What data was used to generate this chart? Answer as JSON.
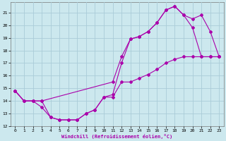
{
  "xlabel": "Windchill (Refroidissement éolien,°C)",
  "bg_color": "#cce8ee",
  "grid_color": "#aaccd8",
  "line_color": "#aa00aa",
  "xlim": [
    -0.5,
    23.5
  ],
  "ylim": [
    12,
    21.8
  ],
  "xticks": [
    0,
    1,
    2,
    3,
    4,
    5,
    6,
    7,
    8,
    9,
    10,
    11,
    12,
    13,
    14,
    15,
    16,
    17,
    18,
    19,
    20,
    21,
    22,
    23
  ],
  "yticks": [
    12,
    13,
    14,
    15,
    16,
    17,
    18,
    19,
    20,
    21
  ],
  "line1_x": [
    0,
    1,
    2,
    3,
    4,
    5,
    6,
    7,
    8,
    9,
    10,
    11,
    12,
    13,
    14,
    15,
    16,
    17,
    18,
    19,
    20,
    21,
    22,
    23
  ],
  "line1_y": [
    14.8,
    14.0,
    14.0,
    13.5,
    12.7,
    12.5,
    12.5,
    12.5,
    13.0,
    13.3,
    14.3,
    14.3,
    15.5,
    15.5,
    15.8,
    16.1,
    16.5,
    17.0,
    17.3,
    17.5,
    17.5,
    17.5,
    17.5,
    17.5
  ],
  "line2_x": [
    0,
    1,
    2,
    3,
    4,
    5,
    6,
    7,
    8,
    9,
    10,
    11,
    12,
    13,
    14,
    15,
    16,
    17,
    18,
    19,
    20,
    21,
    22,
    23
  ],
  "line2_y": [
    14.8,
    14.0,
    14.0,
    14.0,
    12.7,
    12.5,
    12.5,
    12.5,
    13.0,
    13.3,
    14.3,
    14.5,
    17.0,
    18.9,
    19.1,
    19.5,
    20.2,
    21.2,
    21.5,
    20.8,
    19.8,
    17.5,
    17.5,
    17.5
  ],
  "line3_x": [
    0,
    1,
    2,
    3,
    11,
    12,
    13,
    14,
    15,
    16,
    17,
    18,
    19,
    20,
    21,
    22,
    23
  ],
  "line3_y": [
    14.8,
    14.0,
    14.0,
    14.0,
    15.5,
    17.5,
    18.9,
    19.1,
    19.5,
    20.2,
    21.2,
    21.5,
    20.8,
    20.5,
    20.8,
    19.5,
    17.5
  ]
}
